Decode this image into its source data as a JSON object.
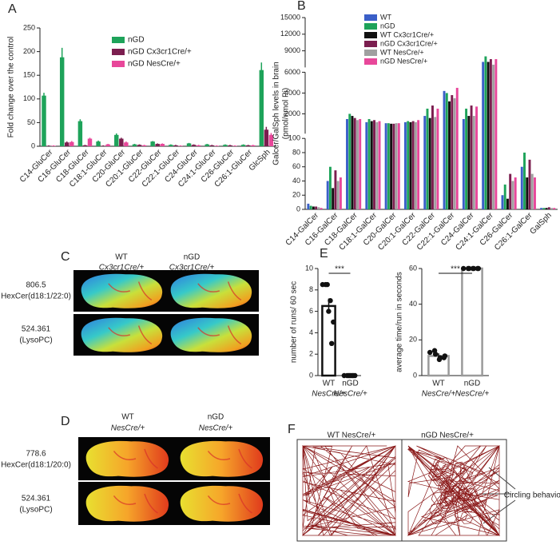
{
  "panels": [
    "A",
    "B",
    "C",
    "D",
    "E",
    "F"
  ],
  "chart_data": [
    {
      "type": "bar",
      "ylabel": [
        "Fold change over the control"
      ],
      "categories": [
        "C14-GluCer",
        "C16-GluCer",
        "C18-GluCer",
        "C18:1-GluCer",
        "C20-GluCer",
        "C20:1-GluCer",
        "C22-GluCer",
        "C22:1-GluCer",
        "C24-GluCer",
        "C24:1-GluCer",
        "C26-GluCer",
        "C26:1-GluCer",
        "GlcSph"
      ],
      "series": [
        {
          "name": "nGD",
          "color": "#1ea35a",
          "values": [
            107,
            188,
            53,
            10,
            24,
            4,
            10,
            3,
            6,
            4,
            3,
            3,
            161
          ],
          "errors": [
            6,
            20,
            4,
            2,
            3,
            1,
            1,
            1,
            1,
            1,
            1,
            1,
            16
          ]
        },
        {
          "name": "nGD Cx3cr1Cre/+",
          "color": "#7b1e4f",
          "values": [
            1,
            8,
            2,
            1,
            16,
            3,
            5,
            2,
            3,
            2,
            2,
            2,
            35
          ],
          "errors": [
            1,
            2,
            1,
            1,
            2,
            1,
            1,
            1,
            1,
            1,
            1,
            1,
            6
          ]
        },
        {
          "name": "nGD NesCre/+",
          "color": "#e8479a",
          "values": [
            1,
            9,
            16,
            4,
            8,
            2,
            5,
            1,
            2,
            1,
            1,
            2,
            24
          ],
          "errors": [
            1,
            2,
            2,
            1,
            2,
            1,
            1,
            1,
            1,
            1,
            1,
            1,
            4
          ]
        }
      ],
      "ylim": [
        0,
        250
      ],
      "yticks": [
        0,
        50,
        100,
        150,
        200,
        250
      ]
    },
    {
      "type": "bar",
      "ylabel": [
        "Galcer/GalSph levels in brain",
        "(pmol/nmol Pi)"
      ],
      "categories": [
        "C14-GalCer",
        "C16-GalCer",
        "C18-GalCer",
        "C18:1-GalCer",
        "C20-GalCer",
        "C20:1-GalCer",
        "C22-GalCer",
        "C22:1-GalCer",
        "C24-GalCer",
        "C24:1-GalCer",
        "C26-GalCer",
        "C26:1-GalCer",
        "GalSph"
      ],
      "series": [
        {
          "name": "WT",
          "color": "#3a5fc8",
          "values": [
            8,
            40,
            1500,
            1200,
            1100,
            1200,
            1800,
            4200,
            1500,
            7000,
            20,
            60,
            2
          ]
        },
        {
          "name": "nGD",
          "color": "#1ea35a",
          "values": [
            5,
            60,
            2000,
            1500,
            1100,
            1300,
            2500,
            4000,
            2500,
            8000,
            35,
            80,
            2
          ]
        },
        {
          "name": "WT Cx3cr1Cre/+",
          "color": "#111111",
          "values": [
            4,
            30,
            1800,
            1300,
            1050,
            1200,
            1600,
            3200,
            1800,
            7000,
            15,
            45,
            2
          ]
        },
        {
          "name": "nGD Cx3cr1Cre/+",
          "color": "#7b1e4f",
          "values": [
            4,
            55,
            1600,
            1400,
            1050,
            1300,
            2800,
            3800,
            2800,
            7500,
            50,
            70,
            3
          ]
        },
        {
          "name": "WT NesCre/+",
          "color": "#a0a0a0",
          "values": [
            3,
            40,
            1400,
            1200,
            1100,
            1200,
            1700,
            3500,
            1800,
            6500,
            40,
            50,
            2
          ]
        },
        {
          "name": "nGD NesCre/+",
          "color": "#e8479a",
          "values": [
            2,
            45,
            1500,
            1300,
            1100,
            1400,
            2500,
            4500,
            2700,
            7500,
            45,
            45,
            2
          ]
        }
      ],
      "ylim": [
        0,
        15000
      ],
      "y_breaks": [
        100,
        6000
      ],
      "yticks": [
        0,
        20,
        40,
        60,
        80,
        100,
        2000,
        4000,
        6000,
        9000,
        12000,
        15000
      ]
    },
    {
      "type": "bar_dot",
      "ylabel": [
        "number of runs/ 60 sec"
      ],
      "color": "#111111",
      "categories": [
        [
          "WT",
          "NesCre/+"
        ],
        [
          "nGD",
          "NesCre/+"
        ]
      ],
      "values": [
        6.5,
        0
      ],
      "errors": [
        0.7,
        0.05
      ],
      "points": [
        [
          8.5,
          8.5,
          8.5,
          7,
          6,
          5,
          3
        ],
        [
          0,
          0,
          0,
          0,
          0,
          0,
          0
        ]
      ],
      "significance": "***",
      "ylim": [
        0,
        10
      ],
      "yticks": [
        0,
        2,
        4,
        6,
        8,
        10
      ]
    },
    {
      "type": "bar_dot",
      "ylabel": [
        "average time/run in seconds"
      ],
      "color": "#9a9a9a",
      "categories": [
        [
          "WT",
          "NesCre/+"
        ],
        [
          "nGD",
          "NesCre/+"
        ]
      ],
      "values": [
        11,
        60
      ],
      "errors": [
        1.5,
        0.3
      ],
      "points": [
        [
          13,
          12,
          14,
          10,
          9,
          11,
          10
        ],
        [
          60,
          60,
          60,
          60,
          60,
          60,
          60
        ]
      ],
      "significance": "***",
      "ylim": [
        0,
        60
      ],
      "yticks": [
        0,
        20,
        40,
        60
      ]
    }
  ],
  "imaging_C": {
    "columns": [
      [
        "WT",
        "Cx3cr1Cre/+"
      ],
      [
        "nGD",
        "Cx3cr1Cre/+"
      ]
    ],
    "rows": [
      [
        "806.5",
        "HexCer(d18:1/22:0)"
      ],
      [
        "524.361",
        "(LysoPC)"
      ]
    ]
  },
  "imaging_D": {
    "columns": [
      [
        "WT",
        "NesCre/+"
      ],
      [
        "nGD",
        "NesCre/+"
      ]
    ],
    "rows": [
      [
        "778.6",
        "HexCer(d18:1/20:0)"
      ],
      [
        "524.361",
        "(LysoPC)"
      ]
    ]
  },
  "open_field": {
    "columns": [
      "WT NesCre/+",
      "nGD NesCre/+"
    ],
    "annotation": "Circling behavior"
  }
}
